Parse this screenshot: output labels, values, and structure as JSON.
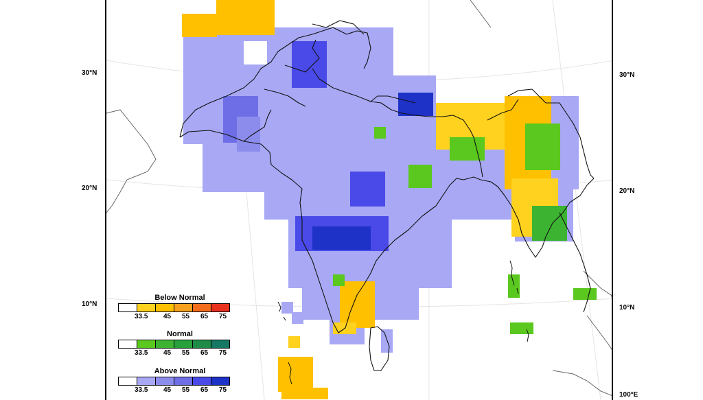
{
  "map": {
    "lat_labels_left": [
      "30°N",
      "20°N",
      "10°N"
    ],
    "lat_labels_right": [
      "30°N",
      "20°N",
      "10°N"
    ],
    "lon_label": "100°E"
  },
  "legend": {
    "below": {
      "title": "Below Normal",
      "ticks": [
        "33.5",
        "45",
        "55",
        "65",
        "75"
      ],
      "colors": [
        "#ffffff",
        "#ffd21f",
        "#ffc000",
        "#f5a01e",
        "#f56e1e",
        "#e8321e"
      ]
    },
    "normal": {
      "title": "Normal",
      "ticks": [
        "33.5",
        "45",
        "55",
        "65",
        "75"
      ],
      "colors": [
        "#ffffff",
        "#5ac81e",
        "#3cb432",
        "#28a03c",
        "#1e8c46",
        "#147864"
      ]
    },
    "above": {
      "title": "Above Normal",
      "ticks": [
        "33.5",
        "45",
        "55",
        "65",
        "75"
      ],
      "colors": [
        "#ffffff",
        "#a8a8f5",
        "#8c8ced",
        "#6e6ee6",
        "#4a4ae8",
        "#1e32c8"
      ]
    }
  }
}
